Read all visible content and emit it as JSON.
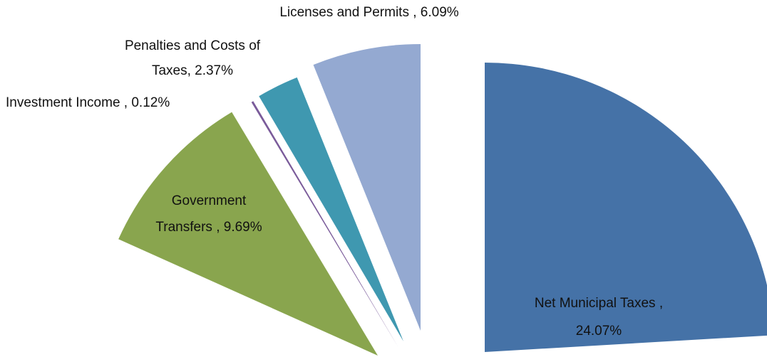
{
  "chart_data": {
    "type": "pie",
    "categories": [
      "Net Municipal Taxes",
      "Licenses and Permits",
      "Penalties and Costs of Taxes",
      "Investment Income",
      "Government Transfers"
    ],
    "values": [
      24.07,
      6.09,
      2.37,
      0.12,
      9.69
    ],
    "labels": [
      [
        "Net Municipal Taxes ,",
        "24.07%"
      ],
      [
        "Licenses and Permits , 6.09%"
      ],
      [
        "Penalties and Costs of",
        "Taxes, 2.37%"
      ],
      [
        "Investment Income , 0.12%"
      ],
      [
        "Government",
        "Transfers , 9.69%"
      ]
    ],
    "colors": [
      "#4572a7",
      "#94a9d1",
      "#3f98b0",
      "#7a5b9a",
      "#89a54e"
    ]
  }
}
